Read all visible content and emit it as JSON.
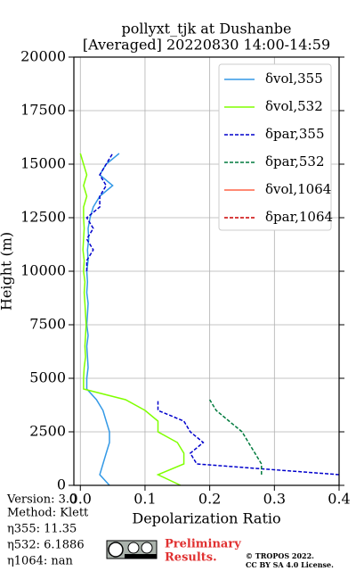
{
  "chart_data": {
    "type": "profile",
    "title": "pollyxt_tjk at Dushanbe",
    "subtitle": "[Averaged] 20220830 14:00-14:59",
    "x_label": "Depolarization Ratio",
    "y_label": "Height (m)",
    "xlim": [
      -0.01,
      0.4
    ],
    "xticks": [
      {
        "value": 0,
        "label": "0.0"
      },
      0.1,
      0.2,
      0.3,
      0.4
    ],
    "ylim": [
      0,
      20000
    ],
    "yticks": [
      0,
      2500,
      5000,
      7500,
      10000,
      12500,
      15000,
      17500,
      20000
    ],
    "grid": true,
    "legend": "upper right",
    "y": [
      0,
      500,
      1000,
      1500,
      2000,
      2500,
      3000,
      3500,
      4000,
      4500,
      5000,
      5500,
      6000,
      6500,
      7000,
      7500,
      8000,
      8500,
      9000,
      9500,
      10000,
      10500,
      11000,
      11500,
      12000,
      12500,
      13000,
      13500,
      14000,
      14500,
      15000,
      15500
    ],
    "series": [
      {
        "name": "δvol,355",
        "color": "#3399e6",
        "dash": false,
        "values": [
          0.045,
          0.03,
          0.035,
          0.04,
          0.045,
          0.045,
          0.04,
          0.035,
          0.025,
          0.01,
          0.01,
          0.012,
          0.011,
          0.01,
          0.012,
          0.01,
          0.011,
          0.012,
          0.01,
          0.011,
          0.01,
          0.012,
          0.011,
          0.013,
          0.012,
          0.015,
          0.02,
          0.03,
          0.05,
          0.03,
          0.04,
          0.06
        ]
      },
      {
        "name": "δvol,532",
        "color": "#80ff00",
        "dash": false,
        "values": [
          0.155,
          0.12,
          0.16,
          0.16,
          0.15,
          0.12,
          0.12,
          0.1,
          0.07,
          0.005,
          0.005,
          0.006,
          0.008,
          0.007,
          0.008,
          0.009,
          0.008,
          0.007,
          0.006,
          0.007,
          0.005,
          0.006,
          0.004,
          0.005,
          0.006,
          0.005,
          0.005,
          0.01,
          0.005,
          0.01,
          0.005,
          0.0
        ]
      },
      {
        "name": "δpar,355",
        "color": "#0000cc",
        "dash": true,
        "values": [
          null,
          0.4,
          0.18,
          0.17,
          0.19,
          0.17,
          0.16,
          0.12,
          0.12,
          null,
          null,
          null,
          null,
          null,
          null,
          null,
          null,
          null,
          null,
          null,
          0.01,
          0.01,
          0.02,
          0.01,
          0.02,
          0.01,
          0.03,
          0.03,
          0.04,
          0.03,
          0.04,
          0.05
        ]
      },
      {
        "name": "δpar,532",
        "color": "#007a3d",
        "dash": true,
        "values": [
          null,
          0.28,
          0.28,
          0.27,
          0.26,
          0.25,
          0.23,
          0.21,
          0.2,
          null,
          null,
          null,
          null,
          null,
          null,
          null,
          null,
          null,
          null,
          null,
          null,
          null,
          null,
          null,
          null,
          null,
          null,
          null,
          null,
          null,
          null,
          null
        ]
      },
      {
        "name": "δvol,1064",
        "color": "#ff6347",
        "dash": false,
        "values": [
          null,
          null,
          null,
          null,
          null,
          null,
          null,
          null,
          null,
          null,
          null,
          null,
          null,
          null,
          null,
          null,
          null,
          null,
          null,
          null,
          null,
          null,
          null,
          null,
          null,
          null,
          null,
          null,
          null,
          null,
          null,
          null
        ]
      },
      {
        "name": "δpar,1064",
        "color": "#cc0000",
        "dash": true,
        "values": [
          null,
          null,
          null,
          null,
          null,
          null,
          null,
          null,
          null,
          null,
          null,
          null,
          null,
          null,
          null,
          null,
          null,
          null,
          null,
          null,
          null,
          null,
          null,
          null,
          null,
          null,
          null,
          null,
          null,
          null,
          null,
          null
        ]
      }
    ]
  },
  "info": {
    "version": "Version: 3.0",
    "method": "Method: Klett",
    "eta355": "η355:  11.35",
    "eta532": "η532: 6.1886",
    "eta1064": "η1064:    nan"
  },
  "notice": {
    "line1": "Preliminary",
    "line2": "Results."
  },
  "license": {
    "line1": "© TROPOS 2022.",
    "line2": "CC BY SA 4.0 License."
  }
}
